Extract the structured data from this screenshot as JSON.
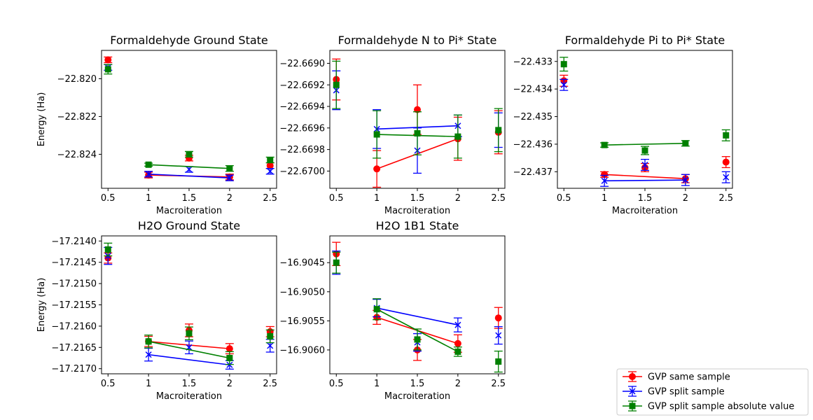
{
  "legend": {
    "placement": "bottom-right",
    "entries": [
      {
        "label": "GVP same sample",
        "color": "#ff0000",
        "marker": "circle"
      },
      {
        "label": "GVP split sample",
        "color": "#0000ff",
        "marker": "x"
      },
      {
        "label": "GVP split sample absolute value",
        "color": "#008000",
        "marker": "square"
      }
    ]
  },
  "chart_data": [
    {
      "type": "line",
      "title": "Formaldehyde Ground State",
      "xlabel": "Macroiteration",
      "ylabel": "Energy (Ha)",
      "xlim": [
        0.42,
        2.58
      ],
      "ylim": [
        -22.8258,
        -22.8185
      ],
      "xticks": [
        0.5,
        1,
        1.5,
        2,
        2.5
      ],
      "xtick_labels": [
        "0.5",
        "1",
        "1.5",
        "2",
        "2.5"
      ],
      "yticks": [
        -22.824,
        -22.822,
        -22.82
      ],
      "ytick_labels": [
        "−22.824",
        "−22.822",
        "−22.820"
      ],
      "series": [
        {
          "name": "GVP same sample",
          "color": "#ff0000",
          "marker": "circle",
          "line_x": [
            1,
            2
          ],
          "line_y": [
            -22.8251,
            -22.8252
          ],
          "points": [
            {
              "x": 0.5,
              "y": -22.819,
              "err": 0.00015
            },
            {
              "x": 1,
              "y": -22.8251,
              "err": 0.00015
            },
            {
              "x": 1.5,
              "y": -22.8242,
              "err": 0.00015
            },
            {
              "x": 2,
              "y": -22.8252,
              "err": 0.00015
            },
            {
              "x": 2.5,
              "y": -22.8246,
              "err": 0.00015
            }
          ]
        },
        {
          "name": "GVP split sample",
          "color": "#0000ff",
          "marker": "x",
          "line_x": [
            1,
            2
          ],
          "line_y": [
            -22.82505,
            -22.82525
          ],
          "points": [
            {
              "x": 0.5,
              "y": -22.8194,
              "err": 0.00015
            },
            {
              "x": 1,
              "y": -22.82505,
              "err": 0.00015
            },
            {
              "x": 1.5,
              "y": -22.8248,
              "err": 0.00015
            },
            {
              "x": 2,
              "y": -22.82525,
              "err": 0.00015
            },
            {
              "x": 2.5,
              "y": -22.8249,
              "err": 0.00015
            }
          ]
        },
        {
          "name": "GVP split sample absolute value",
          "color": "#008000",
          "marker": "square",
          "line_x": [
            1,
            2
          ],
          "line_y": [
            -22.82455,
            -22.82475
          ],
          "points": [
            {
              "x": 0.5,
              "y": -22.8195,
              "err": 0.00025
            },
            {
              "x": 1,
              "y": -22.82455,
              "err": 8e-05
            },
            {
              "x": 1.5,
              "y": -22.824,
              "err": 0.00015
            },
            {
              "x": 2,
              "y": -22.82475,
              "err": 0.00015
            },
            {
              "x": 2.5,
              "y": -22.8243,
              "err": 0.00015
            }
          ]
        }
      ]
    },
    {
      "type": "line",
      "title": "Formaldehyde N to Pi* State",
      "xlabel": "Macroiteration",
      "ylabel": "",
      "xlim": [
        0.42,
        2.58
      ],
      "ylim": [
        -22.67016,
        -22.66888
      ],
      "xticks": [
        0.5,
        1,
        1.5,
        2,
        2.5
      ],
      "xtick_labels": [
        "0.5",
        "1",
        "1.5",
        "2",
        "2.5"
      ],
      "yticks": [
        -22.67,
        -22.6698,
        -22.6696,
        -22.6694,
        -22.6692,
        -22.669
      ],
      "ytick_labels": [
        "−22.6700",
        "−22.6698",
        "−22.6696",
        "−22.6694",
        "−22.6692",
        "−22.6690"
      ],
      "series": [
        {
          "name": "GVP same sample",
          "color": "#ff0000",
          "marker": "circle",
          "line_x": [
            1,
            2
          ],
          "line_y": [
            -22.66998,
            -22.6697
          ],
          "points": [
            {
              "x": 0.5,
              "y": -22.66915,
              "err": 0.00019
            },
            {
              "x": 1,
              "y": -22.66998,
              "err": 0.00017
            },
            {
              "x": 1.5,
              "y": -22.66943,
              "err": 0.00023
            },
            {
              "x": 2,
              "y": -22.6697,
              "err": 0.0002
            },
            {
              "x": 2.5,
              "y": -22.66964,
              "err": 0.0002
            }
          ]
        },
        {
          "name": "GVP split sample",
          "color": "#0000ff",
          "marker": "x",
          "line_x": [
            1,
            2
          ],
          "line_y": [
            -22.66961,
            -22.66958
          ],
          "points": [
            {
              "x": 0.5,
              "y": -22.66925,
              "err": 0.00018
            },
            {
              "x": 1,
              "y": -22.66961,
              "err": 0.00018
            },
            {
              "x": 1.5,
              "y": -22.66981,
              "err": 0.00021
            },
            {
              "x": 2,
              "y": -22.66958,
              "err": 0.0001
            },
            {
              "x": 2.5,
              "y": -22.66962,
              "err": 0.00016
            }
          ]
        },
        {
          "name": "GVP split sample absolute value",
          "color": "#008000",
          "marker": "square",
          "line_x": [
            1,
            2
          ],
          "line_y": [
            -22.66966,
            -22.66968
          ],
          "points": [
            {
              "x": 0.5,
              "y": -22.6692,
              "err": 0.00022
            },
            {
              "x": 1,
              "y": -22.66966,
              "err": 0.00022
            },
            {
              "x": 1.5,
              "y": -22.66965,
              "err": 0.0002
            },
            {
              "x": 2,
              "y": -22.66968,
              "err": 0.0002
            },
            {
              "x": 2.5,
              "y": -22.66962,
              "err": 0.0002
            }
          ]
        }
      ]
    },
    {
      "type": "line",
      "title": "Formaldehyde Pi to Pi* State",
      "xlabel": "Macroiteration",
      "ylabel": "",
      "xlim": [
        0.42,
        2.58
      ],
      "ylim": [
        -22.4376,
        -22.4326
      ],
      "xticks": [
        0.5,
        1,
        1.5,
        2,
        2.5
      ],
      "xtick_labels": [
        "0.5",
        "1",
        "1.5",
        "2",
        "2.5"
      ],
      "yticks": [
        -22.437,
        -22.436,
        -22.435,
        -22.434,
        -22.433
      ],
      "ytick_labels": [
        "−22.437",
        "−22.436",
        "−22.435",
        "−22.434",
        "−22.433"
      ],
      "series": [
        {
          "name": "GVP same sample",
          "color": "#ff0000",
          "marker": "circle",
          "line_x": [
            1,
            2
          ],
          "line_y": [
            -22.4371,
            -22.43725
          ],
          "points": [
            {
              "x": 0.5,
              "y": -22.4337,
              "err": 0.0002
            },
            {
              "x": 1,
              "y": -22.4371,
              "err": 0.0001
            },
            {
              "x": 1.5,
              "y": -22.43685,
              "err": 0.00015
            },
            {
              "x": 2,
              "y": -22.43725,
              "err": 0.00015
            },
            {
              "x": 2.5,
              "y": -22.43665,
              "err": 0.0002
            }
          ]
        },
        {
          "name": "GVP split sample",
          "color": "#0000ff",
          "marker": "x",
          "line_x": [
            1,
            2
          ],
          "line_y": [
            -22.43733,
            -22.4373
          ],
          "points": [
            {
              "x": 0.5,
              "y": -22.43385,
              "err": 0.0002
            },
            {
              "x": 1,
              "y": -22.43733,
              "err": 0.0002
            },
            {
              "x": 1.5,
              "y": -22.43675,
              "err": 0.0002
            },
            {
              "x": 2,
              "y": -22.4373,
              "err": 0.0002
            },
            {
              "x": 2.5,
              "y": -22.4372,
              "err": 0.0002
            }
          ]
        },
        {
          "name": "GVP split sample absolute value",
          "color": "#008000",
          "marker": "square",
          "line_x": [
            1,
            2
          ],
          "line_y": [
            -22.43603,
            -22.43597
          ],
          "points": [
            {
              "x": 0.5,
              "y": -22.4331,
              "err": 0.00025
            },
            {
              "x": 1,
              "y": -22.43603,
              "err": 8e-05
            },
            {
              "x": 1.5,
              "y": -22.43623,
              "err": 0.00015
            },
            {
              "x": 2,
              "y": -22.43597,
              "err": 0.0001
            },
            {
              "x": 2.5,
              "y": -22.43568,
              "err": 0.0002
            }
          ]
        }
      ]
    },
    {
      "type": "line",
      "title": "H2O Ground State",
      "xlabel": "Macroiteration",
      "ylabel": "Energy (Ha)",
      "xlim": [
        0.42,
        2.58
      ],
      "ylim": [
        -17.21712,
        -17.21388
      ],
      "xticks": [
        0.5,
        1,
        1.5,
        2,
        2.5
      ],
      "xtick_labels": [
        "0.5",
        "1",
        "1.5",
        "2",
        "2.5"
      ],
      "yticks": [
        -17.217,
        -17.2165,
        -17.216,
        -17.2155,
        -17.215,
        -17.2145,
        -17.214
      ],
      "ytick_labels": [
        "−17.2170",
        "−17.2165",
        "−17.2160",
        "−17.2155",
        "−17.2150",
        "−17.2145",
        "−17.2140"
      ],
      "series": [
        {
          "name": "GVP same sample",
          "color": "#ff0000",
          "marker": "circle",
          "line_x": [
            1,
            2
          ],
          "line_y": [
            -17.21636,
            -17.21653
          ],
          "points": [
            {
              "x": 0.5,
              "y": -17.2144,
              "err": 0.00012
            },
            {
              "x": 1,
              "y": -17.21636,
              "err": 0.00012
            },
            {
              "x": 1.5,
              "y": -17.2161,
              "err": 0.00015
            },
            {
              "x": 2,
              "y": -17.21653,
              "err": 0.00012
            },
            {
              "x": 2.5,
              "y": -17.21613,
              "err": 0.00012
            }
          ]
        },
        {
          "name": "GVP split sample",
          "color": "#0000ff",
          "marker": "x",
          "line_x": [
            1,
            2
          ],
          "line_y": [
            -17.21667,
            -17.21691
          ],
          "points": [
            {
              "x": 0.5,
              "y": -17.21435,
              "err": 0.0002
            },
            {
              "x": 1,
              "y": -17.21667,
              "err": 0.00015
            },
            {
              "x": 1.5,
              "y": -17.2165,
              "err": 0.00015
            },
            {
              "x": 2,
              "y": -17.21691,
              "err": 0.0001
            },
            {
              "x": 2.5,
              "y": -17.21646,
              "err": 0.00015
            }
          ]
        },
        {
          "name": "GVP split sample absolute value",
          "color": "#008000",
          "marker": "square",
          "line_x": [
            1,
            2
          ],
          "line_y": [
            -17.21636,
            -17.21675
          ],
          "points": [
            {
              "x": 0.5,
              "y": -17.2142,
              "err": 0.00015
            },
            {
              "x": 1,
              "y": -17.21636,
              "err": 0.00015
            },
            {
              "x": 1.5,
              "y": -17.21617,
              "err": 0.00015
            },
            {
              "x": 2,
              "y": -17.21675,
              "err": 0.00015
            },
            {
              "x": 2.5,
              "y": -17.21624,
              "err": 0.00015
            }
          ]
        }
      ]
    },
    {
      "type": "line",
      "title": "H2O 1B1 State",
      "xlabel": "Macroiteration",
      "ylabel": "",
      "xlim": [
        0.42,
        2.58
      ],
      "ylim": [
        -16.90641,
        -16.90404
      ],
      "xticks": [
        0.5,
        1,
        1.5,
        2,
        2.5
      ],
      "xtick_labels": [
        "0.5",
        "1",
        "1.5",
        "2",
        "2.5"
      ],
      "yticks": [
        -16.906,
        -16.9055,
        -16.905,
        -16.9045
      ],
      "ytick_labels": [
        "−16.9060",
        "−16.9055",
        "−16.9050",
        "−16.9045"
      ],
      "series": [
        {
          "name": "GVP same sample",
          "color": "#ff0000",
          "marker": "circle",
          "line_x": [
            1,
            2
          ],
          "line_y": [
            -16.90544,
            -16.90589
          ],
          "points": [
            {
              "x": 0.5,
              "y": -16.90435,
              "err": 0.0002
            },
            {
              "x": 1,
              "y": -16.90544,
              "err": 0.00012
            },
            {
              "x": 1.5,
              "y": -16.906,
              "err": 0.00018
            },
            {
              "x": 2,
              "y": -16.90589,
              "err": 0.00015
            },
            {
              "x": 2.5,
              "y": -16.90545,
              "err": 0.00018
            }
          ]
        },
        {
          "name": "GVP split sample",
          "color": "#0000ff",
          "marker": "x",
          "line_x": [
            1,
            2
          ],
          "line_y": [
            -16.90528,
            -16.90557
          ],
          "points": [
            {
              "x": 0.5,
              "y": -16.9045,
              "err": 0.0002
            },
            {
              "x": 1,
              "y": -16.90528,
              "err": 0.00015
            },
            {
              "x": 1.5,
              "y": -16.90587,
              "err": 0.00015
            },
            {
              "x": 2,
              "y": -16.90557,
              "err": 0.00012
            },
            {
              "x": 2.5,
              "y": -16.90575,
              "err": 0.00015
            }
          ]
        },
        {
          "name": "GVP split sample absolute value",
          "color": "#008000",
          "marker": "square",
          "line_x": [
            1,
            2
          ],
          "line_y": [
            -16.9053,
            -16.90603
          ],
          "points": [
            {
              "x": 0.5,
              "y": -16.9045,
              "err": 0.00018
            },
            {
              "x": 1,
              "y": -16.9053,
              "err": 0.00018
            },
            {
              "x": 1.5,
              "y": -16.90582,
              "err": 0.00018
            },
            {
              "x": 2,
              "y": -16.90603,
              "err": 8e-05
            },
            {
              "x": 2.5,
              "y": -16.9062,
              "err": 0.00018
            }
          ]
        }
      ]
    }
  ]
}
